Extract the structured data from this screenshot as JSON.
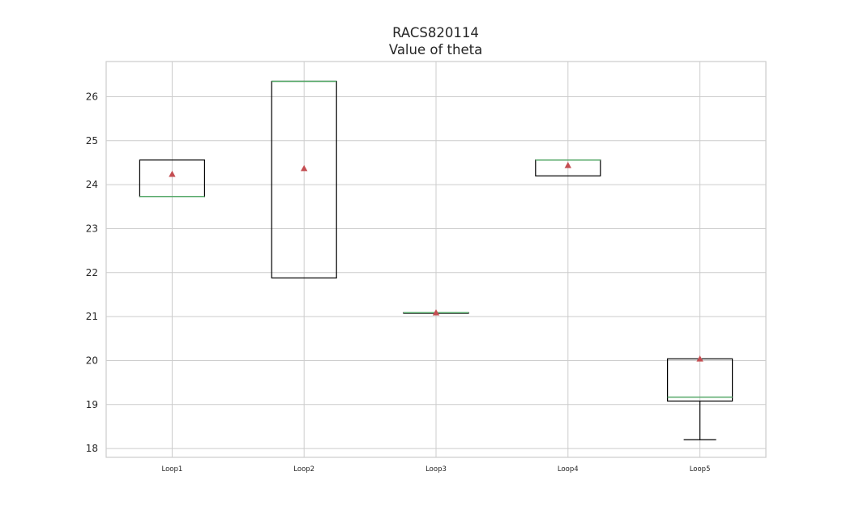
{
  "chart_data": {
    "type": "box",
    "title_lines": [
      "RACS820114",
      "Value of theta"
    ],
    "categories": [
      "Loop1",
      "Loop2",
      "Loop3",
      "Loop4",
      "Loop5"
    ],
    "boxes": [
      {
        "name": "Loop1",
        "whisker_low": 23.73,
        "q1": 23.73,
        "median": 23.73,
        "q3": 24.56,
        "whisker_high": 24.56,
        "mean": 24.24
      },
      {
        "name": "Loop2",
        "whisker_low": 21.88,
        "q1": 21.88,
        "median": 26.35,
        "q3": 26.35,
        "whisker_high": 26.35,
        "mean": 24.37
      },
      {
        "name": "Loop3",
        "whisker_low": 21.09,
        "q1": 21.09,
        "median": 21.09,
        "q3": 21.09,
        "whisker_high": 21.09,
        "mean": 21.09
      },
      {
        "name": "Loop4",
        "whisker_low": 24.2,
        "q1": 24.2,
        "median": 24.56,
        "q3": 24.56,
        "whisker_high": 24.56,
        "mean": 24.44
      },
      {
        "name": "Loop5",
        "whisker_low": 18.2,
        "q1": 19.08,
        "median": 19.17,
        "q3": 20.04,
        "whisker_high": 20.04,
        "mean": 20.04
      }
    ],
    "ylim": [
      17.8,
      26.8
    ],
    "yticks": [
      18,
      19,
      20,
      21,
      22,
      23,
      24,
      25,
      26
    ],
    "grid": true,
    "colors": {
      "box": "#000000",
      "median": "#55a868",
      "mean": "#c44e52",
      "grid": "#cccccc",
      "frame": "#cccccc"
    }
  }
}
